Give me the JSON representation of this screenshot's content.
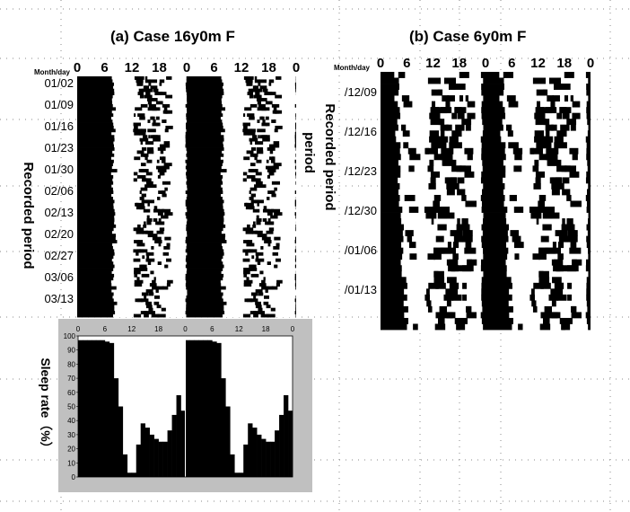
{
  "chart_data": [
    {
      "type": "heatmap",
      "title": "(a) Case  16y0m  F",
      "x_ticks": [
        "0",
        "6",
        "12",
        "18",
        "0",
        "6",
        "12",
        "18",
        "0"
      ],
      "corner_label": "Month/day",
      "y_ticks": [
        "01/02",
        "01/09",
        "01/16",
        "01/23",
        "01/30",
        "02/06",
        "02/13",
        "02/20",
        "02/27",
        "03/06",
        "03/13"
      ],
      "ylabel_left": "Recorded period",
      "ylabel_right": "period",
      "days": 78,
      "hours_per_row": 48,
      "colors": {
        "sleep": "#000000",
        "wake": "#ffffff"
      }
    },
    {
      "type": "heatmap",
      "title": "(b) Case  6y0m F",
      "x_ticks": [
        "0",
        "6",
        "12",
        "18",
        "0",
        "6",
        "12",
        "18",
        "0"
      ],
      "corner_label": "Month/day",
      "y_ticks": [
        "/12/09",
        "/12/16",
        "/12/23",
        "/12/30",
        "/01/06",
        "/01/13"
      ],
      "ylabel": "Recorded period",
      "days": 44,
      "hours_per_row": 48,
      "colors": {
        "sleep": "#000000",
        "wake": "#ffffff"
      }
    },
    {
      "type": "area",
      "x_ticks": [
        "0",
        "6",
        "12",
        "18",
        "0",
        "6",
        "12",
        "18",
        "0"
      ],
      "y_ticks": [
        "100",
        "90",
        "80",
        "70",
        "60",
        "50",
        "40",
        "30",
        "20",
        "10",
        "0"
      ],
      "ylabel": "Sleep rate（%）",
      "ylim": [
        0,
        100
      ],
      "xlim": [
        0,
        48
      ],
      "x": [
        0,
        1,
        2,
        3,
        4,
        5,
        6,
        7,
        8,
        9,
        10,
        11,
        12,
        13,
        14,
        15,
        16,
        17,
        18,
        19,
        20,
        21,
        22,
        23,
        24,
        25,
        26,
        27,
        28,
        29,
        30,
        31,
        32,
        33,
        34,
        35,
        36,
        37,
        38,
        39,
        40,
        41,
        42,
        43,
        44,
        45,
        46,
        47,
        48
      ],
      "values": [
        97,
        97,
        97,
        97,
        97,
        97,
        96,
        95,
        70,
        50,
        16,
        3,
        3,
        23,
        38,
        35,
        30,
        27,
        25,
        25,
        33,
        44,
        58,
        47,
        97,
        97,
        97,
        97,
        97,
        97,
        96,
        95,
        70,
        50,
        16,
        3,
        3,
        23,
        38,
        35,
        30,
        27,
        25,
        25,
        33,
        44,
        58,
        47,
        97
      ],
      "colors": {
        "fill": "#000000",
        "panel": "#c0c0c0"
      }
    }
  ]
}
